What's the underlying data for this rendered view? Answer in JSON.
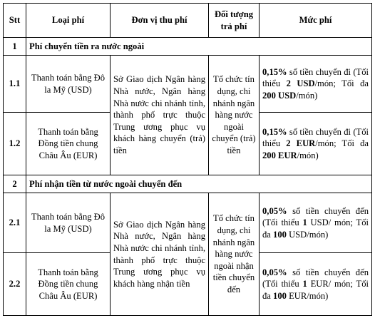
{
  "headers": {
    "stt": "Stt",
    "loai_phi": "Loại phí",
    "don_vi": "Đơn vị thu phí",
    "doi_tuong": "Đối tượng trả phí",
    "muc_phi": "Mức phí"
  },
  "sections": [
    {
      "stt": "1",
      "title": "Phí chuyển tiền ra nước ngoài",
      "don_vi": "Sở Giao dịch Ngân hàng Nhà nước, Ngân hàng Nhà nước chi nhánh tỉnh, thành phố trực thuộc Trung ương phục vụ khách hàng chuyển (trả) tiền",
      "doi_tuong": "Tổ chức tín dụng, chi nhánh ngân hàng nước ngoài chuyển (trả) tiền",
      "rows": [
        {
          "stt": "1.1",
          "loai_phi": "Thanh toán bằng Đô la Mỹ (USD)",
          "rate": "0,15%",
          "rate_text": " số tiền chuyển đi (Tối thiểu ",
          "min": "2 USD",
          "mid_text": "/món; Tối đa ",
          "max": "200 USD",
          "end_text": "/món)"
        },
        {
          "stt": "1.2",
          "loai_phi": "Thanh toán bằng Đồng tiền chung Châu Âu (EUR)",
          "rate": "0,15%",
          "rate_text": " số tiền chuyển đi (Tối thiểu ",
          "min": "2 EUR",
          "mid_text": "/món; Tối đa ",
          "max": "200 EUR",
          "end_text": "/món)"
        }
      ]
    },
    {
      "stt": "2",
      "title": "Phí nhận tiền từ nước ngoài chuyển đến",
      "don_vi": "Sở Giao dịch Ngân hàng Nhà nước, Ngân hàng Nhà nước chi nhánh tỉnh, thành phố trực thuộc Trung ương phục vụ khách hàng nhận tiền",
      "doi_tuong": "Tổ chức tín dụng, chi nhánh ngân hàng nước ngoài nhận tiền chuyển đến",
      "rows": [
        {
          "stt": "2.1",
          "loai_phi": "Thanh toán bằng Đô la Mỹ (USD)",
          "rate": "0,05%",
          "rate_text": " số tiền chuyển đến (Tối thiểu ",
          "min": "1",
          "mid_text": " USD/ món; Tối đa ",
          "max": "100",
          "end_text": " USD/món)"
        },
        {
          "stt": "2.2",
          "loai_phi": "Thanh toán bằng Đồng tiền chung Châu Âu (EUR)",
          "rate": "0,05%",
          "rate_text": " số tiền chuyển đến (Tối thiểu ",
          "min": "1",
          "mid_text": " EUR/ món; Tối đa ",
          "max": "100",
          "end_text": " EUR/món)"
        }
      ]
    }
  ]
}
